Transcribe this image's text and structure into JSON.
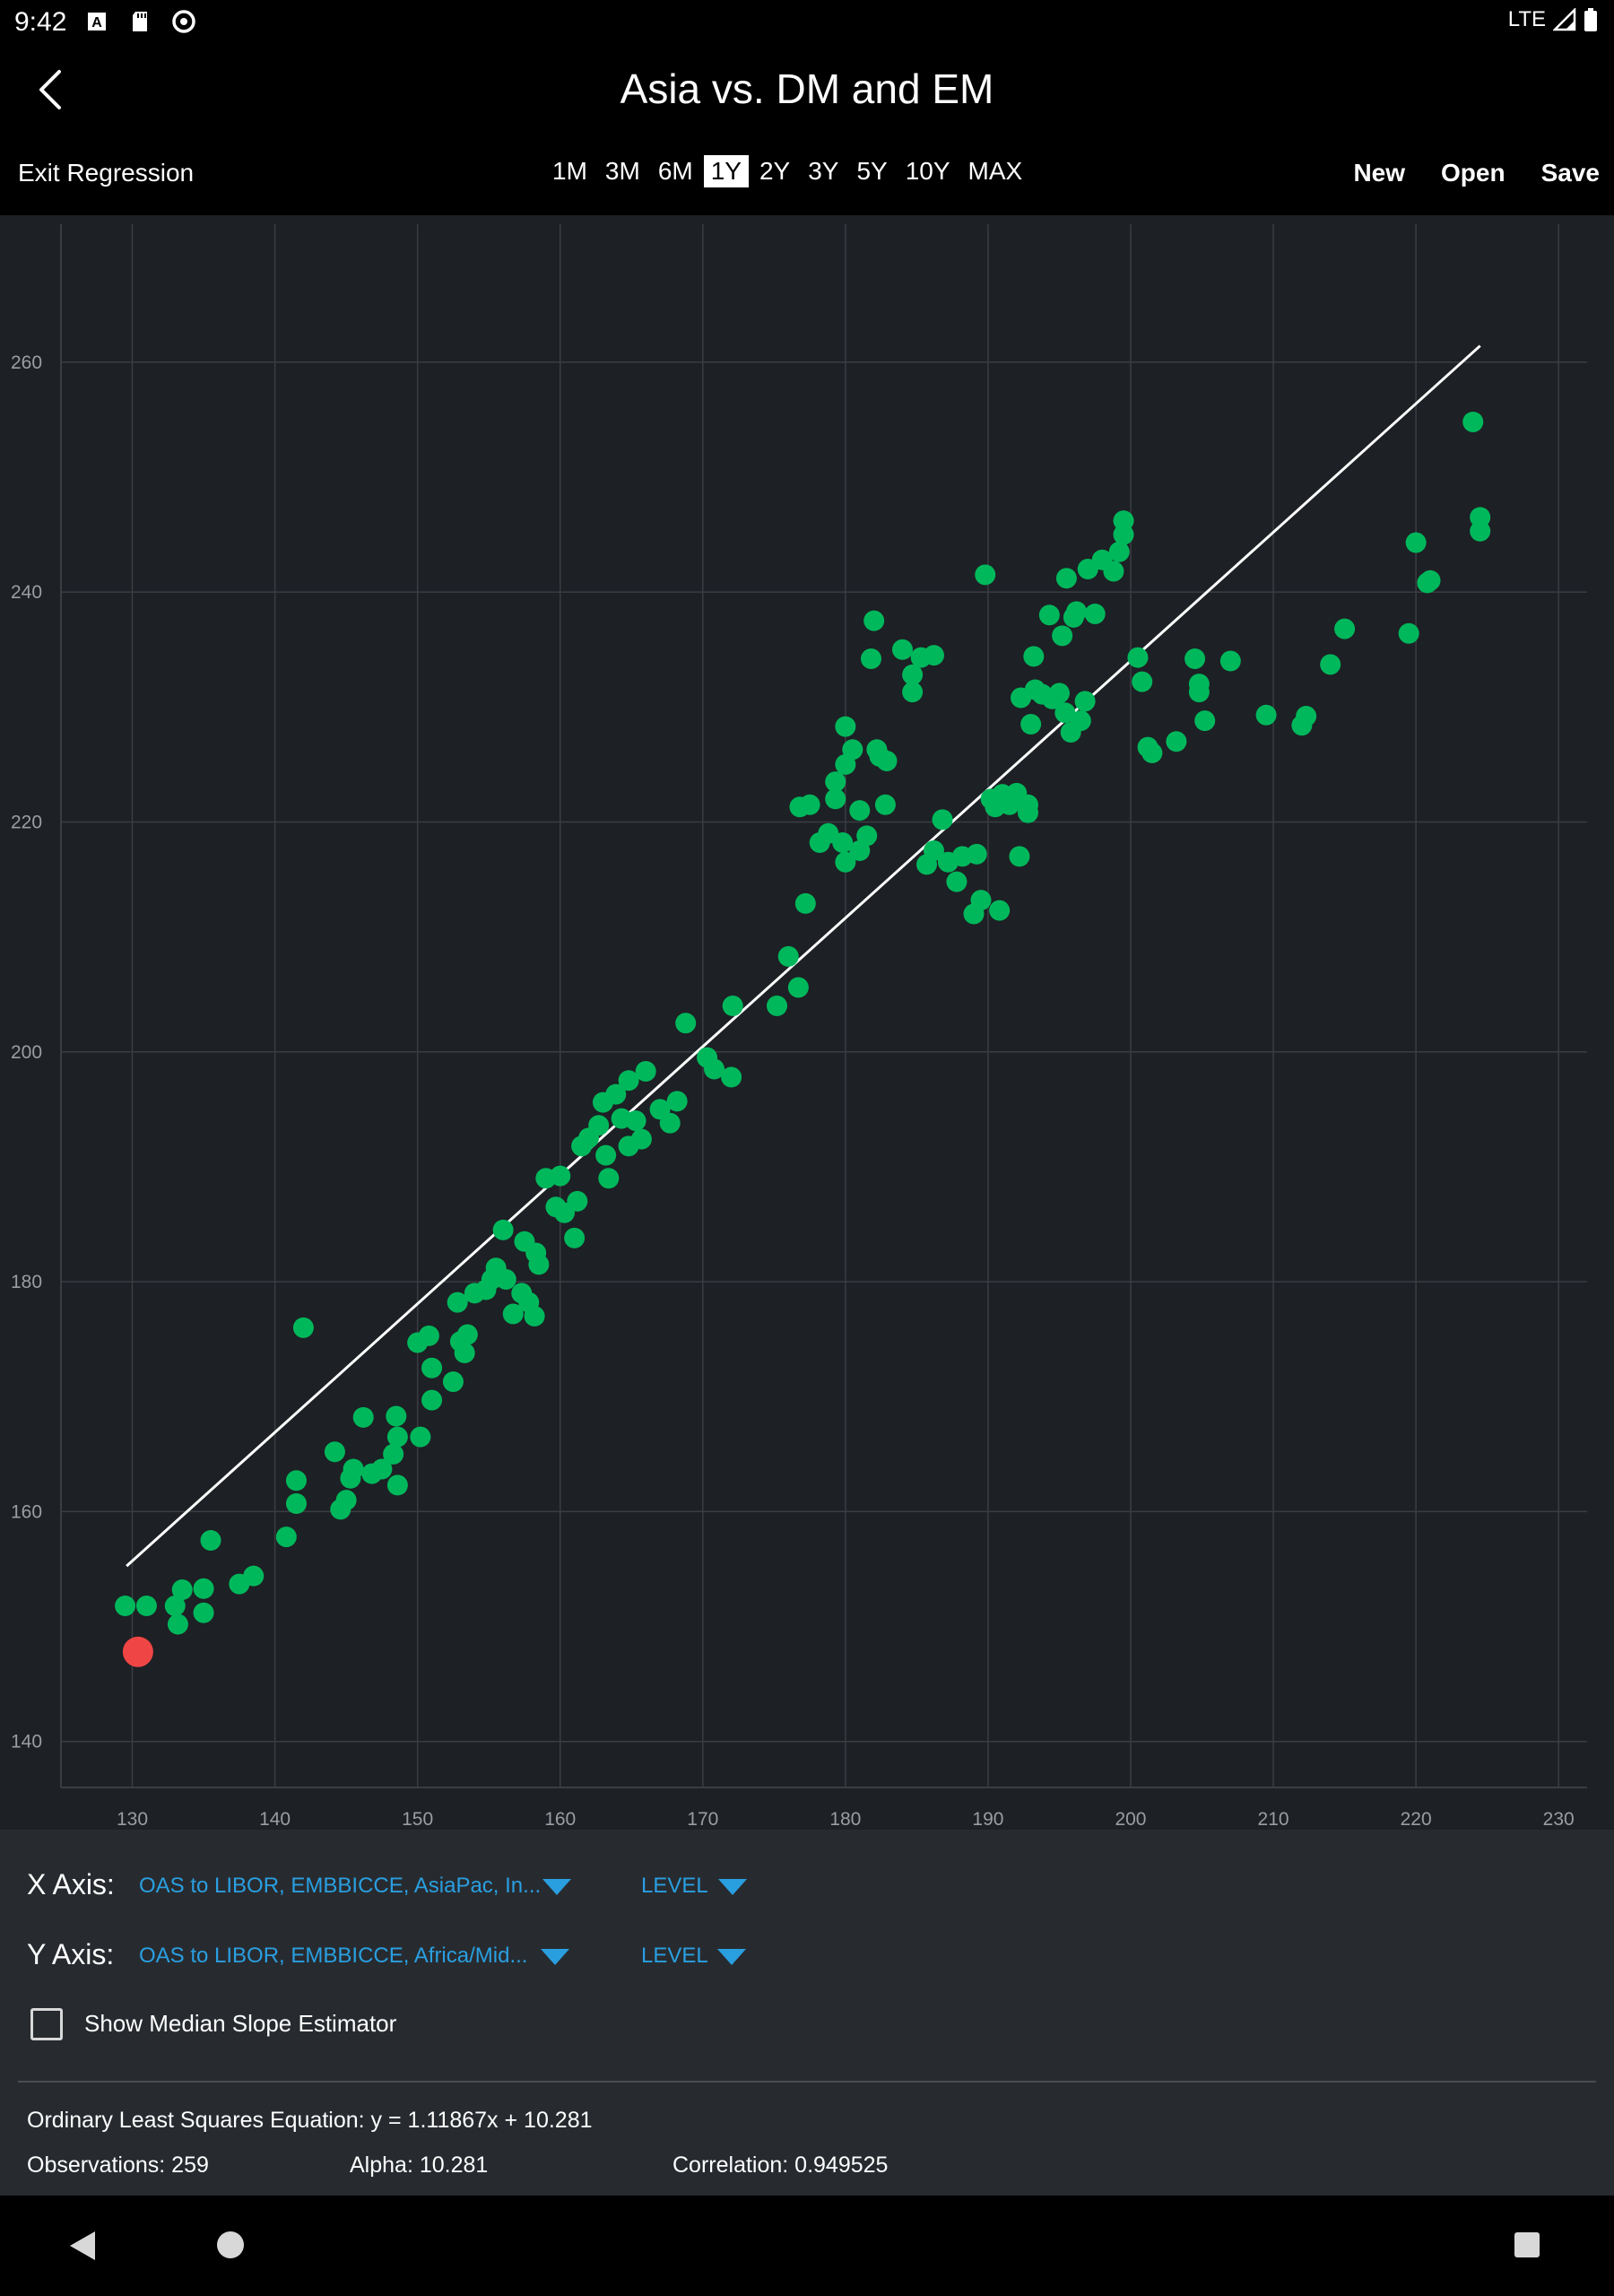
{
  "status_bar": {
    "time": "9:42",
    "network": "LTE",
    "icons": [
      "a-notification-icon",
      "sd-card-icon",
      "sync-icon",
      "signal-icon",
      "battery-icon"
    ]
  },
  "header": {
    "title": "Asia vs. DM and EM",
    "back_icon": "chevron-left-icon"
  },
  "toolbar": {
    "exit_label": "Exit Regression",
    "periods": [
      "1M",
      "3M",
      "6M",
      "1Y",
      "2Y",
      "3Y",
      "5Y",
      "10Y",
      "MAX"
    ],
    "active_period": "1Y",
    "new_label": "New",
    "open_label": "Open",
    "save_label": "Save"
  },
  "colors": {
    "point": "#00b85c",
    "latest_point": "#f04545",
    "regression_line": "#ffffff",
    "grid": "#3a3e43",
    "plot_bg": "#1d2024",
    "accent": "#2a9fe0"
  },
  "chart_data": {
    "type": "scatter",
    "title": "",
    "xlabel": "",
    "ylabel": "",
    "xlim": [
      125,
      232
    ],
    "ylim": [
      136,
      272
    ],
    "x_ticks": [
      130,
      140,
      150,
      160,
      170,
      180,
      190,
      200,
      210,
      220,
      230
    ],
    "y_ticks": [
      140,
      160,
      180,
      200,
      220,
      240,
      260
    ],
    "grid": true,
    "regression": {
      "slope": 1.11867,
      "intercept": 10.281,
      "x_range": [
        129.6,
        224.5
      ]
    },
    "latest_point": [
      130.4,
      147.8
    ],
    "points": [
      [
        129.5,
        151.8
      ],
      [
        131,
        151.8
      ],
      [
        133,
        151.8
      ],
      [
        133.5,
        153.2
      ],
      [
        133.2,
        150.2
      ],
      [
        135,
        153.3
      ],
      [
        135,
        151.2
      ],
      [
        135.5,
        157.5
      ],
      [
        137.5,
        153.7
      ],
      [
        138.5,
        154.4
      ],
      [
        140.8,
        157.8
      ],
      [
        141.5,
        162.7
      ],
      [
        141.5,
        160.7
      ],
      [
        142,
        176
      ],
      [
        144.2,
        165.2
      ],
      [
        144.6,
        160.2
      ],
      [
        145,
        161
      ],
      [
        145.3,
        162.9
      ],
      [
        145.5,
        163.7
      ],
      [
        146.2,
        168.2
      ],
      [
        146.8,
        163.3
      ],
      [
        147.5,
        163.7
      ],
      [
        148.3,
        165
      ],
      [
        148.5,
        168.3
      ],
      [
        148.6,
        166.5
      ],
      [
        148.6,
        162.3
      ],
      [
        150,
        174.7
      ],
      [
        150.2,
        166.5
      ],
      [
        150.8,
        175.3
      ],
      [
        151,
        172.5
      ],
      [
        151,
        169.7
      ],
      [
        152.5,
        171.3
      ],
      [
        152.8,
        178.2
      ],
      [
        153,
        174.8
      ],
      [
        153.3,
        173.8
      ],
      [
        153.5,
        175.4
      ],
      [
        154,
        179
      ],
      [
        154.8,
        179.3
      ],
      [
        155.2,
        180.2
      ],
      [
        155.5,
        181.2
      ],
      [
        156.2,
        180.2
      ],
      [
        156.7,
        177.2
      ],
      [
        157.3,
        179
      ],
      [
        157.8,
        178.2
      ],
      [
        158.2,
        177
      ],
      [
        156,
        184.5
      ],
      [
        157.5,
        183.5
      ],
      [
        158.3,
        182.5
      ],
      [
        158.5,
        181.5
      ],
      [
        159,
        189
      ],
      [
        159.7,
        186.5
      ],
      [
        160,
        189.2
      ],
      [
        160.3,
        186
      ],
      [
        161,
        183.8
      ],
      [
        161.2,
        187
      ],
      [
        161.5,
        191.8
      ],
      [
        162,
        192.5
      ],
      [
        162.7,
        193.6
      ],
      [
        163,
        195.6
      ],
      [
        163.2,
        191
      ],
      [
        163.4,
        189
      ],
      [
        163.9,
        196.3
      ],
      [
        164.3,
        194.2
      ],
      [
        164.8,
        197.5
      ],
      [
        164.8,
        191.8
      ],
      [
        165.3,
        194
      ],
      [
        165.7,
        192.4
      ],
      [
        166,
        198.3
      ],
      [
        167,
        195
      ],
      [
        167.7,
        193.8
      ],
      [
        168.2,
        195.7
      ],
      [
        168.8,
        202.5
      ],
      [
        170.3,
        199.5
      ],
      [
        170.8,
        198.5
      ],
      [
        172,
        197.8
      ],
      [
        172.1,
        204
      ],
      [
        175.2,
        204
      ],
      [
        176,
        208.3
      ],
      [
        176.7,
        205.6
      ],
      [
        177.2,
        212.9
      ],
      [
        176.8,
        221.3
      ],
      [
        177.5,
        221.5
      ],
      [
        178.2,
        218.2
      ],
      [
        178.8,
        219
      ],
      [
        179.3,
        222
      ],
      [
        179.3,
        223.5
      ],
      [
        179.8,
        218.2
      ],
      [
        180,
        216.5
      ],
      [
        180,
        228.3
      ],
      [
        180,
        225
      ],
      [
        180.5,
        226.3
      ],
      [
        181,
        221
      ],
      [
        181,
        217.5
      ],
      [
        181.5,
        218.8
      ],
      [
        181.8,
        234.2
      ],
      [
        182,
        237.5
      ],
      [
        182.2,
        226.3
      ],
      [
        182.4,
        225.7
      ],
      [
        182.8,
        221.5
      ],
      [
        182.9,
        225.3
      ],
      [
        184,
        235
      ],
      [
        184.7,
        232.8
      ],
      [
        184.7,
        231.3
      ],
      [
        185.3,
        234.3
      ],
      [
        185.7,
        216.3
      ],
      [
        186.2,
        217.5
      ],
      [
        186.2,
        234.5
      ],
      [
        186.8,
        220.2
      ],
      [
        187.2,
        216.5
      ],
      [
        187.8,
        214.8
      ],
      [
        188.2,
        217
      ],
      [
        189,
        212
      ],
      [
        189.2,
        217.2
      ],
      [
        189.5,
        213.2
      ],
      [
        189.8,
        241.5
      ],
      [
        190.2,
        222
      ],
      [
        190.5,
        221.3
      ],
      [
        190.8,
        212.3
      ],
      [
        191,
        222.4
      ],
      [
        191.5,
        221.5
      ],
      [
        192,
        222.5
      ],
      [
        192.2,
        217
      ],
      [
        192.3,
        230.8
      ],
      [
        192.8,
        220.8
      ],
      [
        192.8,
        221.5
      ],
      [
        193,
        228.5
      ],
      [
        193.2,
        234.4
      ],
      [
        193.3,
        231.5
      ],
      [
        193.8,
        231.1
      ],
      [
        194.3,
        238
      ],
      [
        194.5,
        230.7
      ],
      [
        195,
        231.2
      ],
      [
        195.2,
        236.2
      ],
      [
        195.4,
        229.5
      ],
      [
        195.5,
        241.2
      ],
      [
        195.8,
        227.8
      ],
      [
        196,
        237.8
      ],
      [
        196.2,
        238.3
      ],
      [
        196.5,
        228.8
      ],
      [
        196.8,
        230.5
      ],
      [
        197,
        242
      ],
      [
        197.5,
        238.1
      ],
      [
        198,
        242.8
      ],
      [
        198.8,
        241.8
      ],
      [
        199.2,
        243.5
      ],
      [
        199.5,
        245
      ],
      [
        199.5,
        246.2
      ],
      [
        200.5,
        234.3
      ],
      [
        200.8,
        232.2
      ],
      [
        201.2,
        226.5
      ],
      [
        201.5,
        226
      ],
      [
        203.2,
        227
      ],
      [
        204.5,
        234.2
      ],
      [
        204.8,
        232
      ],
      [
        204.8,
        231.3
      ],
      [
        205.2,
        228.8
      ],
      [
        207,
        234
      ],
      [
        209.5,
        229.3
      ],
      [
        212,
        228.4
      ],
      [
        212.3,
        229.2
      ],
      [
        214,
        233.7
      ],
      [
        215,
        236.8
      ],
      [
        219.5,
        236.4
      ],
      [
        220,
        244.3
      ],
      [
        220.8,
        240.8
      ],
      [
        221,
        241
      ],
      [
        224,
        254.8
      ],
      [
        224.5,
        246.5
      ],
      [
        224.5,
        245.3
      ]
    ]
  },
  "controls": {
    "x_axis_label": "X Axis:",
    "x_axis_value": "OAS to LIBOR, EMBBICCE, AsiaPac, In...",
    "x_axis_mode": "LEVEL",
    "y_axis_label": "Y Axis:",
    "y_axis_value": "OAS to LIBOR, EMBBICCE, Africa/Mid...",
    "y_axis_mode": "LEVEL",
    "median_slope_label": "Show Median Slope Estimator",
    "median_slope_checked": false
  },
  "stats": {
    "equation": "Ordinary Least Squares Equation: y = 1.11867x + 10.281",
    "observations": "Observations: 259",
    "alpha": "Alpha: 10.281",
    "correlation": "Correlation: 0.949525"
  },
  "nav": {
    "back_icon": "nav-back-icon",
    "home_icon": "nav-home-icon",
    "recents_icon": "nav-recents-icon"
  }
}
